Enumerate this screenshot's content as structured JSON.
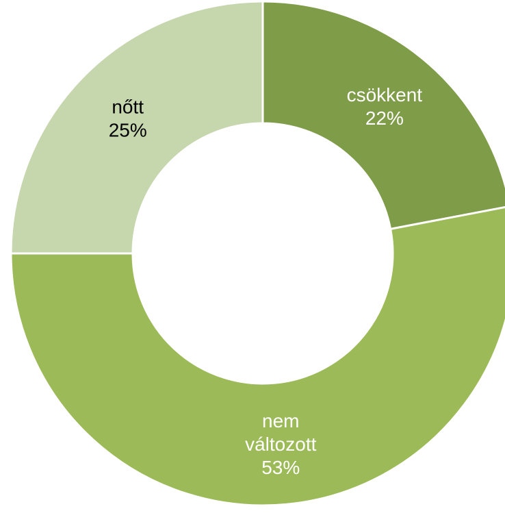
{
  "chart_data": {
    "type": "pie",
    "donut": true,
    "categories": [
      "csökkent",
      "nem változott",
      "nőtt"
    ],
    "values": [
      22,
      53,
      25
    ],
    "labels": [
      {
        "lines": [
          "csökkent"
        ],
        "pct": "22%"
      },
      {
        "lines": [
          "nem",
          "változott"
        ],
        "pct": "53%"
      },
      {
        "lines": [
          "nőtt"
        ],
        "pct": "25%"
      }
    ],
    "colors": [
      "#7f9c49",
      "#9cbb58",
      "#c6d6ad"
    ],
    "label_colors": [
      "#ffffff",
      "#ffffff",
      "#000000"
    ],
    "slice_border_color": "#ffffff",
    "title": "",
    "legend": "none"
  }
}
